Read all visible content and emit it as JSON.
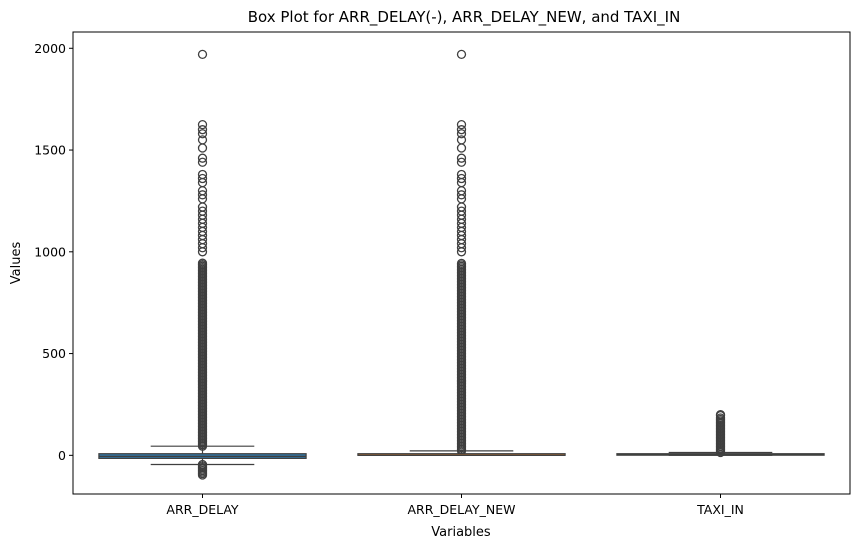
{
  "chart_data": {
    "type": "box",
    "title": "Box Plot for ARR_DELAY(-), ARR_DELAY_NEW, and TAXI_IN",
    "xlabel": "Variables",
    "ylabel": "Values",
    "ylim": [
      -190,
      2080
    ],
    "yticks": [
      0,
      500,
      1000,
      1500,
      2000
    ],
    "categories": [
      "ARR_DELAY",
      "ARR_DELAY_NEW",
      "TAXI_IN"
    ],
    "colors": [
      "#3274a1",
      "#e1812c",
      "#3a923a"
    ],
    "boxes": [
      {
        "category": "ARR_DELAY",
        "q1": -15,
        "median": -5,
        "q3": 8,
        "whisker_low": -45,
        "whisker_high": 45,
        "outlier_low_range": [
          -100,
          -45
        ],
        "outlier_high_dense_range": [
          45,
          950
        ],
        "outliers_high": [
          1000,
          1020,
          1040,
          1060,
          1080,
          1100,
          1120,
          1140,
          1160,
          1180,
          1200,
          1220,
          1260,
          1280,
          1300,
          1340,
          1360,
          1380,
          1440,
          1460,
          1510,
          1550,
          1580,
          1600,
          1625,
          1970
        ]
      },
      {
        "category": "ARR_DELAY_NEW",
        "q1": 0,
        "median": 0,
        "q3": 8,
        "whisker_low": 0,
        "whisker_high": 22,
        "outlier_low_range": null,
        "outlier_high_dense_range": [
          22,
          950
        ],
        "outliers_high": [
          1000,
          1020,
          1040,
          1060,
          1080,
          1100,
          1120,
          1140,
          1160,
          1180,
          1200,
          1220,
          1260,
          1280,
          1300,
          1340,
          1360,
          1380,
          1440,
          1460,
          1510,
          1550,
          1580,
          1600,
          1625,
          1970
        ]
      },
      {
        "category": "TAXI_IN",
        "q1": 4,
        "median": 5,
        "q3": 8,
        "whisker_low": 0,
        "whisker_high": 14,
        "outlier_low_range": null,
        "outlier_high_dense_range": [
          14,
          190
        ],
        "outliers_high": [
          195,
          200
        ]
      }
    ]
  }
}
